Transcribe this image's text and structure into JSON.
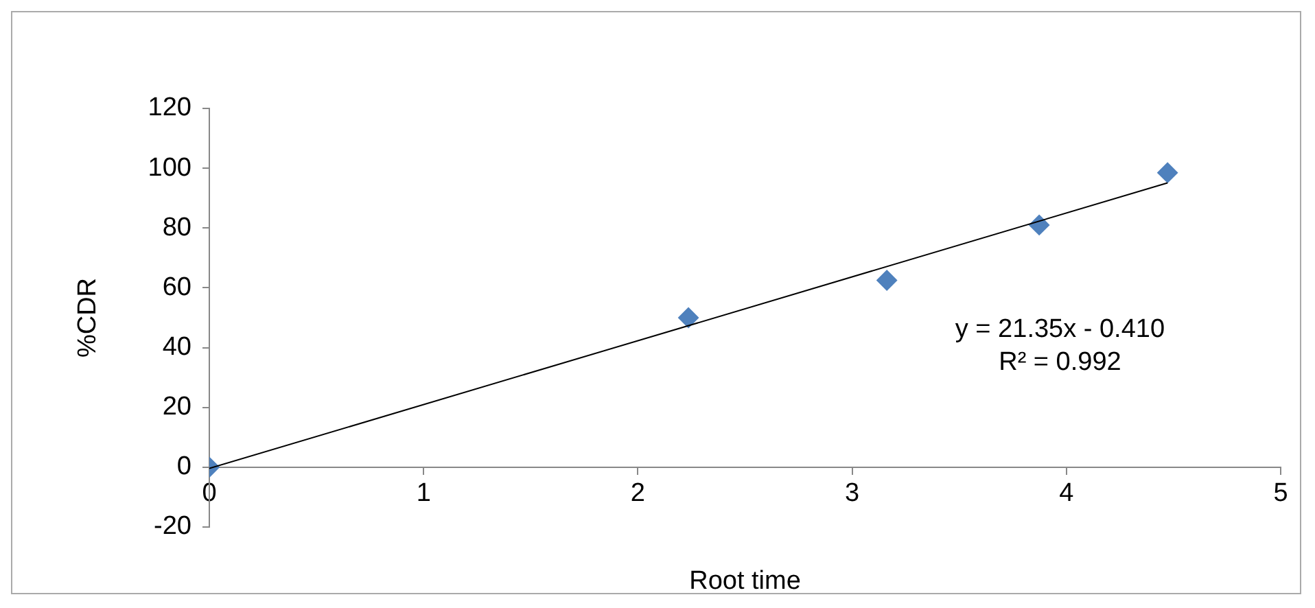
{
  "chart_data": {
    "type": "scatter",
    "xlabel": "Root time",
    "ylabel": "%CDR",
    "xlim": [
      0,
      5
    ],
    "xticks": [
      0,
      1,
      2,
      3,
      4,
      5
    ],
    "ylim": [
      -20,
      120
    ],
    "yticks": [
      -20,
      0,
      20,
      40,
      60,
      80,
      100,
      120
    ],
    "grid": false,
    "legend": false,
    "marker": "diamond",
    "series": [
      {
        "color": "#4f81bd",
        "x": [
          0,
          2.236,
          3.162,
          3.873,
          4.472
        ],
        "values": [
          0,
          50,
          62.5,
          81,
          98.5
        ]
      },
      {
        "type": "line",
        "color": "#000000",
        "marker": "none",
        "x": [
          0,
          4.472
        ],
        "values": [
          -0.4,
          95.1
        ]
      }
    ],
    "annotations": [
      "y = 21.35x - 0.410",
      "R² = 0.992"
    ]
  }
}
